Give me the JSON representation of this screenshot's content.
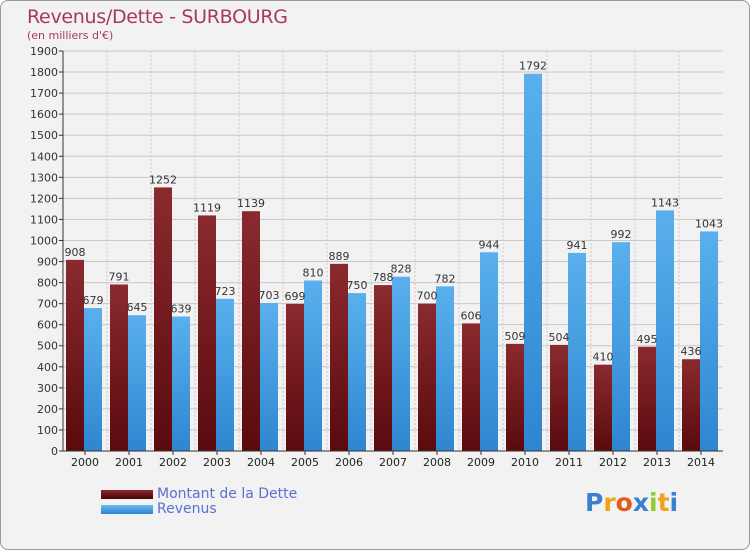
{
  "title": "Revenus/Dette - SURBOURG",
  "subtitle": "(en milliers d'€)",
  "logo": {
    "letters": [
      "P",
      "r",
      "o",
      "x",
      "i",
      "t",
      "i"
    ],
    "colors": [
      "#3a7fd0",
      "#f2a21a",
      "#e25a1c",
      "#3a7fd0",
      "#8ccf2a",
      "#f2a21a",
      "#3a7fd0"
    ]
  },
  "colors": {
    "dette": "#6e1418",
    "revenus": "#3e9be0",
    "title": "#a83a56",
    "legend_text": "#5a6fd1",
    "background": "#f2f2f2"
  },
  "chart_data": {
    "type": "bar",
    "categories": [
      "2000",
      "2001",
      "2002",
      "2003",
      "2004",
      "2005",
      "2006",
      "2007",
      "2008",
      "2009",
      "2010",
      "2011",
      "2012",
      "2013",
      "2014"
    ],
    "series": [
      {
        "name": "Montant de la Dette",
        "values": [
          908,
          791,
          1252,
          1119,
          1139,
          699,
          889,
          788,
          700,
          606,
          509,
          504,
          410,
          495,
          436
        ]
      },
      {
        "name": "Revenus",
        "values": [
          679,
          645,
          639,
          723,
          703,
          810,
          750,
          828,
          782,
          944,
          1792,
          941,
          992,
          1143,
          1043
        ]
      }
    ],
    "ylim": [
      0,
      1900
    ],
    "yticks": [
      0,
      100,
      200,
      300,
      400,
      500,
      600,
      700,
      800,
      900,
      1000,
      1100,
      1200,
      1300,
      1400,
      1500,
      1600,
      1700,
      1800,
      1900
    ],
    "grid": true,
    "legend_position": "bottom-left"
  }
}
